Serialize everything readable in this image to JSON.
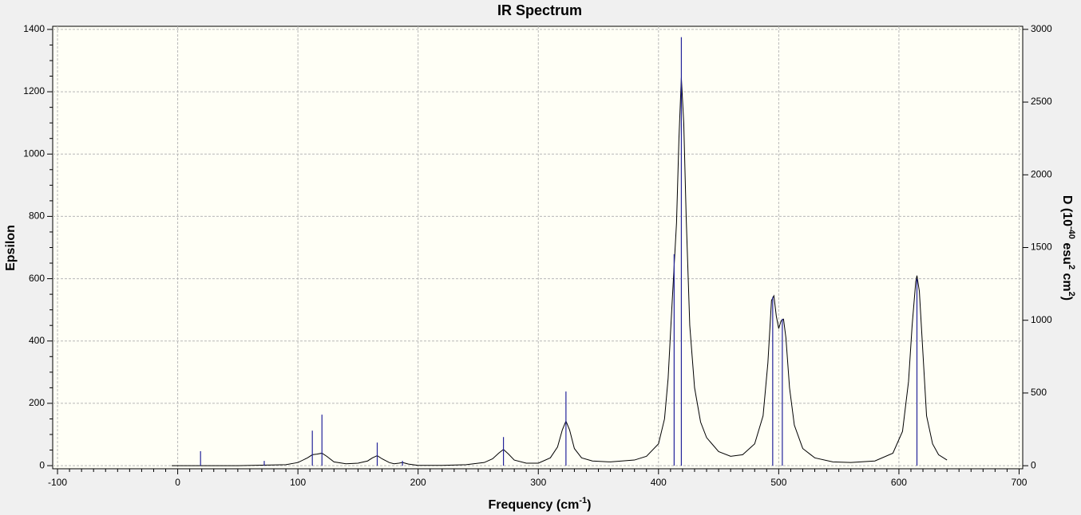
{
  "chart_data": {
    "type": "line",
    "title": "IR Spectrum",
    "xlabel_parts": [
      "Frequency (cm",
      "-1",
      ")"
    ],
    "ylabel": "Epsilon",
    "y2label_parts": [
      "D (10",
      "-40",
      " esu",
      "2",
      " cm",
      "2",
      ")"
    ],
    "xlim": [
      -104,
      703
    ],
    "xticks": [
      -100,
      0,
      100,
      200,
      300,
      400,
      500,
      600,
      700
    ],
    "ylim": [
      -10,
      1410
    ],
    "yticks": [
      0,
      200,
      400,
      600,
      800,
      1000,
      1200,
      1400
    ],
    "y2lim": [
      -21,
      3021
    ],
    "y2ticks": [
      0,
      500,
      1000,
      1500,
      2000,
      2500,
      3000
    ],
    "grid": true,
    "series": [
      {
        "style": "line",
        "color": "#000000",
        "x": [
          -5,
          50,
          90,
          100,
          108,
          112,
          116,
          120,
          124,
          130,
          140,
          150,
          158,
          162,
          166,
          170,
          176,
          180,
          184,
          187,
          192,
          200,
          220,
          240,
          255,
          262,
          267,
          271,
          275,
          280,
          290,
          300,
          310,
          316,
          320,
          323,
          326,
          330,
          336,
          345,
          360,
          380,
          390,
          400,
          405,
          408,
          411,
          413,
          415,
          417,
          419,
          421,
          423,
          426,
          430,
          435,
          440,
          450,
          460,
          470,
          480,
          487,
          491,
          494,
          496,
          498,
          500,
          502,
          504,
          506,
          509,
          513,
          520,
          530,
          545,
          560,
          580,
          595,
          603,
          608,
          611,
          614,
          615,
          617,
          620,
          623,
          628,
          633,
          640
        ],
        "values": [
          0,
          0,
          3,
          10,
          25,
          35,
          37,
          40,
          30,
          12,
          6,
          8,
          15,
          25,
          32,
          22,
          10,
          6,
          8,
          10,
          5,
          1,
          1,
          3,
          10,
          22,
          40,
          52,
          38,
          18,
          8,
          8,
          25,
          60,
          115,
          143,
          115,
          55,
          25,
          15,
          12,
          18,
          30,
          70,
          150,
          280,
          500,
          640,
          780,
          1050,
          1245,
          1100,
          800,
          450,
          250,
          140,
          90,
          45,
          30,
          35,
          70,
          160,
          330,
          530,
          545,
          480,
          440,
          465,
          470,
          410,
          250,
          130,
          55,
          25,
          12,
          10,
          15,
          40,
          110,
          270,
          450,
          590,
          610,
          560,
          360,
          160,
          70,
          35,
          18
        ]
      },
      {
        "style": "stick",
        "axis": "y2",
        "color": "#23239a",
        "x": [
          19,
          72,
          112,
          120,
          166,
          187,
          271,
          323,
          413,
          419,
          495,
          503,
          615
        ],
        "values": [
          100,
          33,
          241,
          351,
          159,
          33,
          197,
          510,
          1454,
          2946,
          1160,
          1010,
          1284
        ]
      }
    ]
  }
}
